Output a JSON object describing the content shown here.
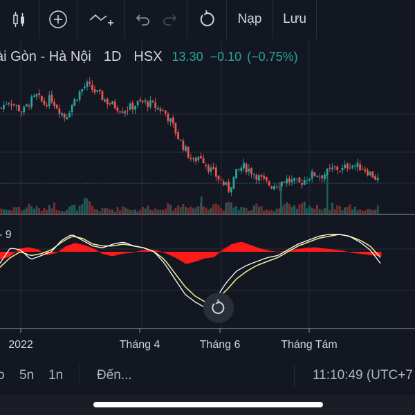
{
  "toolbar": {
    "load_label": "Nạp",
    "save_label": "Lưu"
  },
  "symbol": {
    "name": "ài Gòn - Hà Nội",
    "timeframe": "1D",
    "exchange": "HSX",
    "price": "13.30",
    "change": "−0.10",
    "change_pct": "(−0.75%)"
  },
  "colors": {
    "background": "#131722",
    "up": "#26a69a",
    "down": "#ef5350",
    "macd_hist": "#ff1a1a",
    "macd_line": "#ffffff",
    "signal_line": "#f0e68c",
    "grid": "#2a2e39"
  },
  "macd": {
    "label_fragment": "9"
  },
  "chart_data": {
    "type": "candlestick-with-volume-and-macd",
    "x_labels": [
      "2022",
      "Tháng 4",
      "Tháng 6",
      "Tháng Tám"
    ],
    "price_path": [
      17.0,
      17.4,
      17.1,
      16.8,
      17.3,
      17.6,
      17.2,
      17.5,
      17.0,
      16.5,
      17.2,
      17.8,
      18.2,
      17.9,
      17.6,
      17.3,
      17.1,
      16.9,
      17.0,
      17.2,
      17.3,
      17.2,
      17.0,
      16.8,
      16.2,
      15.4,
      14.8,
      14.2,
      14.6,
      14.0,
      13.6,
      13.2,
      12.8,
      13.6,
      14.0,
      13.8,
      13.5,
      13.2,
      13.0,
      13.1,
      13.3,
      13.2,
      13.1,
      13.4,
      13.6,
      13.5,
      13.7,
      13.9,
      13.8,
      14.1,
      14.0,
      13.9,
      13.6,
      13.3
    ],
    "volume_path": [
      3,
      2,
      4,
      2,
      5,
      3,
      2,
      6,
      3,
      2,
      4,
      3,
      7,
      3,
      2,
      3,
      2,
      4,
      3,
      2,
      3,
      4,
      2,
      5,
      3,
      4,
      6,
      3,
      5,
      4,
      7,
      3,
      5,
      4,
      3,
      2,
      4,
      3,
      2,
      3,
      5,
      3,
      4,
      6,
      3,
      4,
      3,
      5,
      3,
      4,
      3,
      2,
      3,
      2
    ],
    "macd_hist": [
      -0.35,
      -0.2,
      0.15,
      0.2,
      0.1,
      -0.15,
      -0.05,
      0.25,
      0.4,
      0.3,
      0.15,
      -0.1,
      -0.2,
      -0.1,
      -0.05,
      0.05,
      0.1,
      0.05,
      -0.1,
      -0.3,
      -0.55,
      -0.45,
      -0.3,
      -0.25,
      0.1,
      0.35,
      0.45,
      0.3,
      0.15,
      0.05,
      0.0,
      0.05,
      0.12,
      0.18,
      0.2,
      0.15,
      0.1,
      0.05,
      -0.05,
      -0.1,
      -0.15,
      -0.2
    ],
    "macd_line": [
      -0.6,
      0.2,
      0.1,
      -0.4,
      -0.2,
      0.0,
      0.6,
      0.9,
      0.6,
      0.3,
      0.2,
      0.4,
      0.5,
      0.3,
      0.2,
      0.0,
      -0.6,
      -1.4,
      -2.2,
      -2.6,
      -2.9,
      -2.4,
      -1.6,
      -1.0,
      -0.7,
      -0.5,
      -0.3,
      -0.2,
      0.1,
      0.4,
      0.6,
      0.8,
      0.9,
      0.9,
      0.8,
      0.5,
      0.1,
      -0.6
    ],
    "signal_line": [
      -0.8,
      -0.3,
      0.0,
      -0.2,
      -0.1,
      0.1,
      0.5,
      0.8,
      0.7,
      0.4,
      0.3,
      0.3,
      0.4,
      0.3,
      0.2,
      0.0,
      -0.4,
      -1.1,
      -1.8,
      -2.3,
      -2.6,
      -2.5,
      -2.0,
      -1.4,
      -1.0,
      -0.7,
      -0.5,
      -0.3,
      0.0,
      0.3,
      0.5,
      0.7,
      0.8,
      0.9,
      0.8,
      0.6,
      0.3,
      -0.3
    ]
  },
  "bottom_bar": {
    "range_5d": "o",
    "range_5y": "5n",
    "range_1y": "1n",
    "goto_label": "Đến...",
    "clock": "11:10:49 (UTC+7"
  }
}
